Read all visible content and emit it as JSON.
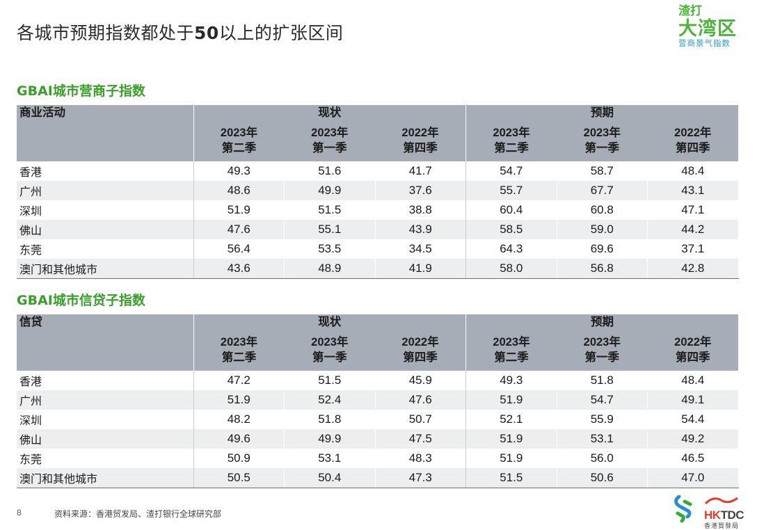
{
  "page": {
    "title_pre": "各城市预期指数都处于",
    "title_num": "50",
    "title_post": "以上的扩张区间",
    "page_number": "8",
    "source": "资料来源：香港贸发局、渣打银行全球研究部"
  },
  "logo": {
    "line1": "渣打",
    "line2": "大湾区",
    "line3": "营商景气指数",
    "hktdc_mark_a": "HK",
    "hktdc_mark_b": "TDC",
    "hktdc_sub": "香港貿發局"
  },
  "tables": [
    {
      "title": "GBAI城市营商子指数",
      "first_header": "商业活动",
      "group_current": "现状",
      "group_expected": "预期",
      "quarters": [
        {
          "year": "2023年",
          "q": "第二季"
        },
        {
          "year": "2023年",
          "q": "第一季"
        },
        {
          "year": "2022年",
          "q": "第四季"
        },
        {
          "year": "2023年",
          "q": "第二季"
        },
        {
          "year": "2023年",
          "q": "第一季"
        },
        {
          "year": "2022年",
          "q": "第四季"
        }
      ],
      "rows": [
        {
          "city": "香港",
          "values": [
            "49.3",
            "51.6",
            "41.7",
            "54.7",
            "58.7",
            "48.4"
          ]
        },
        {
          "city": "广州",
          "values": [
            "48.6",
            "49.9",
            "37.6",
            "55.7",
            "67.7",
            "43.1"
          ]
        },
        {
          "city": "深圳",
          "values": [
            "51.9",
            "51.5",
            "38.8",
            "60.4",
            "60.8",
            "47.1"
          ]
        },
        {
          "city": "佛山",
          "values": [
            "47.6",
            "55.1",
            "43.9",
            "58.5",
            "59.0",
            "44.2"
          ]
        },
        {
          "city": "东莞",
          "values": [
            "56.4",
            "53.5",
            "34.5",
            "64.3",
            "69.6",
            "37.1"
          ]
        },
        {
          "city": "澳门和其他城市",
          "values": [
            "43.6",
            "48.9",
            "41.9",
            "58.0",
            "56.8",
            "42.8"
          ]
        }
      ]
    },
    {
      "title": "GBAI城市信贷子指数",
      "first_header": "信贷",
      "group_current": "现状",
      "group_expected": "预期",
      "quarters": [
        {
          "year": "2023年",
          "q": "第二季"
        },
        {
          "year": "2023年",
          "q": "第一季"
        },
        {
          "year": "2022年",
          "q": "第四季"
        },
        {
          "year": "2023年",
          "q": "第二季"
        },
        {
          "year": "2023年",
          "q": "第一季"
        },
        {
          "year": "2022年",
          "q": "第四季"
        }
      ],
      "rows": [
        {
          "city": "香港",
          "values": [
            "47.2",
            "51.5",
            "45.9",
            "49.3",
            "51.8",
            "48.4"
          ]
        },
        {
          "city": "广州",
          "values": [
            "51.9",
            "52.4",
            "47.6",
            "51.9",
            "54.7",
            "49.1"
          ]
        },
        {
          "city": "深圳",
          "values": [
            "48.2",
            "51.8",
            "50.7",
            "52.1",
            "55.9",
            "54.4"
          ]
        },
        {
          "city": "佛山",
          "values": [
            "49.6",
            "49.9",
            "47.5",
            "51.9",
            "53.1",
            "49.2"
          ]
        },
        {
          "city": "东莞",
          "values": [
            "50.9",
            "53.1",
            "48.3",
            "51.9",
            "56.0",
            "46.5"
          ]
        },
        {
          "city": "澳门和其他城市",
          "values": [
            "50.5",
            "50.4",
            "47.3",
            "51.5",
            "50.6",
            "47.0"
          ]
        }
      ]
    }
  ]
}
